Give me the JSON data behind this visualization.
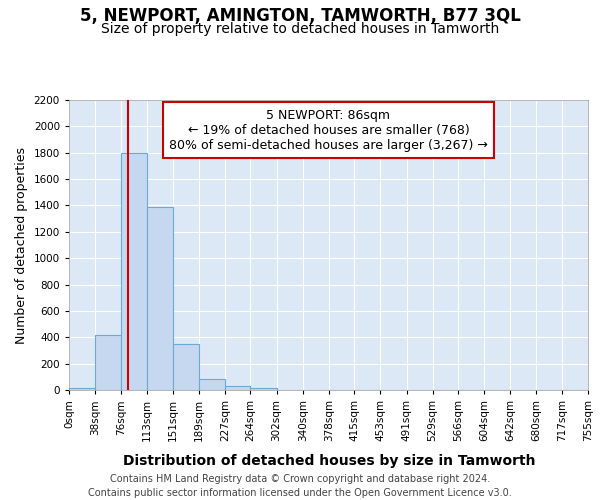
{
  "title": "5, NEWPORT, AMINGTON, TAMWORTH, B77 3QL",
  "subtitle": "Size of property relative to detached houses in Tamworth",
  "xlabel": "Distribution of detached houses by size in Tamworth",
  "ylabel": "Number of detached properties",
  "footer_line1": "Contains HM Land Registry data © Crown copyright and database right 2024.",
  "footer_line2": "Contains public sector information licensed under the Open Government Licence v3.0.",
  "bar_edges": [
    0,
    38,
    76,
    113,
    151,
    189,
    227,
    264,
    302,
    340,
    378,
    415,
    453,
    491,
    529,
    566,
    604,
    642,
    680,
    717,
    755
  ],
  "bar_heights": [
    15,
    420,
    1800,
    1390,
    350,
    80,
    30,
    15,
    0,
    0,
    0,
    0,
    0,
    0,
    0,
    0,
    0,
    0,
    0,
    0
  ],
  "bar_color": "#c5d8f0",
  "bar_edgecolor": "#6aaad4",
  "vline_x": 86,
  "vline_color": "#cc0000",
  "annotation_line1": "5 NEWPORT: 86sqm",
  "annotation_line2": "← 19% of detached houses are smaller (768)",
  "annotation_line3": "80% of semi-detached houses are larger (3,267) →",
  "annotation_box_edgecolor": "#cc0000",
  "ylim": [
    0,
    2200
  ],
  "yticks": [
    0,
    200,
    400,
    600,
    800,
    1000,
    1200,
    1400,
    1600,
    1800,
    2000,
    2200
  ],
  "xlim": [
    0,
    755
  ],
  "bg_color": "#dce8f5",
  "fig_bg_color": "#ffffff",
  "grid_color": "#ffffff",
  "title_fontsize": 12,
  "subtitle_fontsize": 10,
  "ylabel_fontsize": 9,
  "xlabel_fontsize": 10,
  "tick_fontsize": 7.5,
  "footer_fontsize": 7,
  "annotation_fontsize": 9
}
